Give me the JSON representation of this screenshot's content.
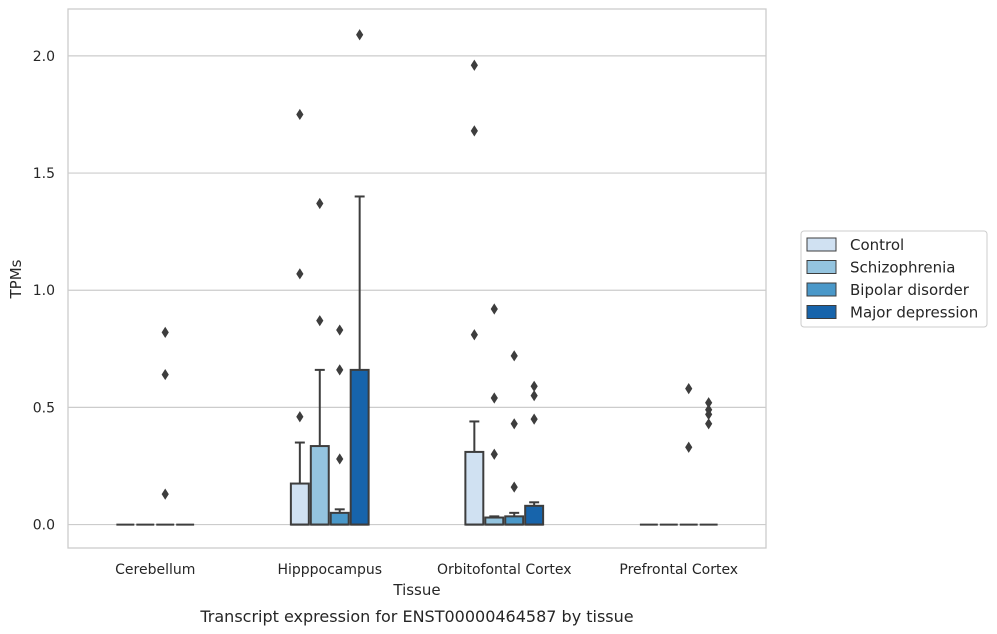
{
  "caption": "Transcript expression for ENST00000464587 by tissue",
  "chart_data": {
    "type": "box",
    "title": "",
    "xlabel": "Tissue",
    "ylabel": "TPMs",
    "categories": [
      "Cerebellum",
      "Hipppocampus",
      "Orbitofontal Cortex",
      "Prefrontal Cortex"
    ],
    "ylim": [
      -0.1,
      2.2
    ],
    "yticks": [
      "0.0",
      "0.5",
      "1.0",
      "1.5",
      "2.0"
    ],
    "grid": true,
    "legend_position": "right",
    "series": [
      {
        "name": "Control",
        "color": "#d0e1f2",
        "boxes": [
          {
            "q1": 0,
            "q3": 0,
            "median": 0,
            "whisker_low": 0,
            "whisker_high": 0,
            "outliers": []
          },
          {
            "q1": 0,
            "q3": 0.175,
            "median": 0,
            "whisker_low": 0,
            "whisker_high": 0.35,
            "outliers": [
              0.46,
              1.07,
              1.75
            ]
          },
          {
            "q1": 0,
            "q3": 0.31,
            "median": 0,
            "whisker_low": 0,
            "whisker_high": 0.44,
            "outliers": [
              0.81,
              1.68,
              1.96
            ]
          },
          {
            "q1": 0,
            "q3": 0,
            "median": 0,
            "whisker_low": 0,
            "whisker_high": 0,
            "outliers": []
          }
        ]
      },
      {
        "name": "Schizophrenia",
        "color": "#94c4df",
        "boxes": [
          {
            "q1": 0,
            "q3": 0,
            "median": 0,
            "whisker_low": 0,
            "whisker_high": 0,
            "outliers": []
          },
          {
            "q1": 0,
            "q3": 0.335,
            "median": 0,
            "whisker_low": 0,
            "whisker_high": 0.66,
            "outliers": [
              0.87,
              1.37
            ]
          },
          {
            "q1": 0,
            "q3": 0.03,
            "median": 0,
            "whisker_low": 0,
            "whisker_high": 0.035,
            "outliers": [
              0.3,
              0.54,
              0.92
            ]
          },
          {
            "q1": 0,
            "q3": 0,
            "median": 0,
            "whisker_low": 0,
            "whisker_high": 0,
            "outliers": []
          }
        ]
      },
      {
        "name": "Bipolar disorder",
        "color": "#4a98c9",
        "boxes": [
          {
            "q1": 0,
            "q3": 0,
            "median": 0,
            "whisker_low": 0,
            "whisker_high": 0,
            "outliers": [
              0.13,
              0.64,
              0.82
            ]
          },
          {
            "q1": 0,
            "q3": 0.05,
            "median": 0,
            "whisker_low": 0,
            "whisker_high": 0.065,
            "outliers": [
              0.28,
              0.66,
              0.83
            ]
          },
          {
            "q1": 0,
            "q3": 0.035,
            "median": 0,
            "whisker_low": 0,
            "whisker_high": 0.05,
            "outliers": [
              0.16,
              0.43,
              0.72
            ]
          },
          {
            "q1": 0,
            "q3": 0,
            "median": 0,
            "whisker_low": 0,
            "whisker_high": 0,
            "outliers": [
              0.33,
              0.58
            ]
          }
        ]
      },
      {
        "name": "Major depression",
        "color": "#1764ab",
        "boxes": [
          {
            "q1": 0,
            "q3": 0,
            "median": 0,
            "whisker_low": 0,
            "whisker_high": 0,
            "outliers": []
          },
          {
            "q1": 0,
            "q3": 0.66,
            "median": 0,
            "whisker_low": 0,
            "whisker_high": 1.4,
            "outliers": [
              2.09
            ]
          },
          {
            "q1": 0,
            "q3": 0.08,
            "median": 0,
            "whisker_low": 0,
            "whisker_high": 0.095,
            "outliers": [
              0.45,
              0.55,
              0.59
            ]
          },
          {
            "q1": 0,
            "q3": 0,
            "median": 0,
            "whisker_low": 0,
            "whisker_high": 0,
            "outliers": [
              0.47,
              0.52,
              0.43,
              0.49
            ]
          }
        ]
      }
    ]
  }
}
